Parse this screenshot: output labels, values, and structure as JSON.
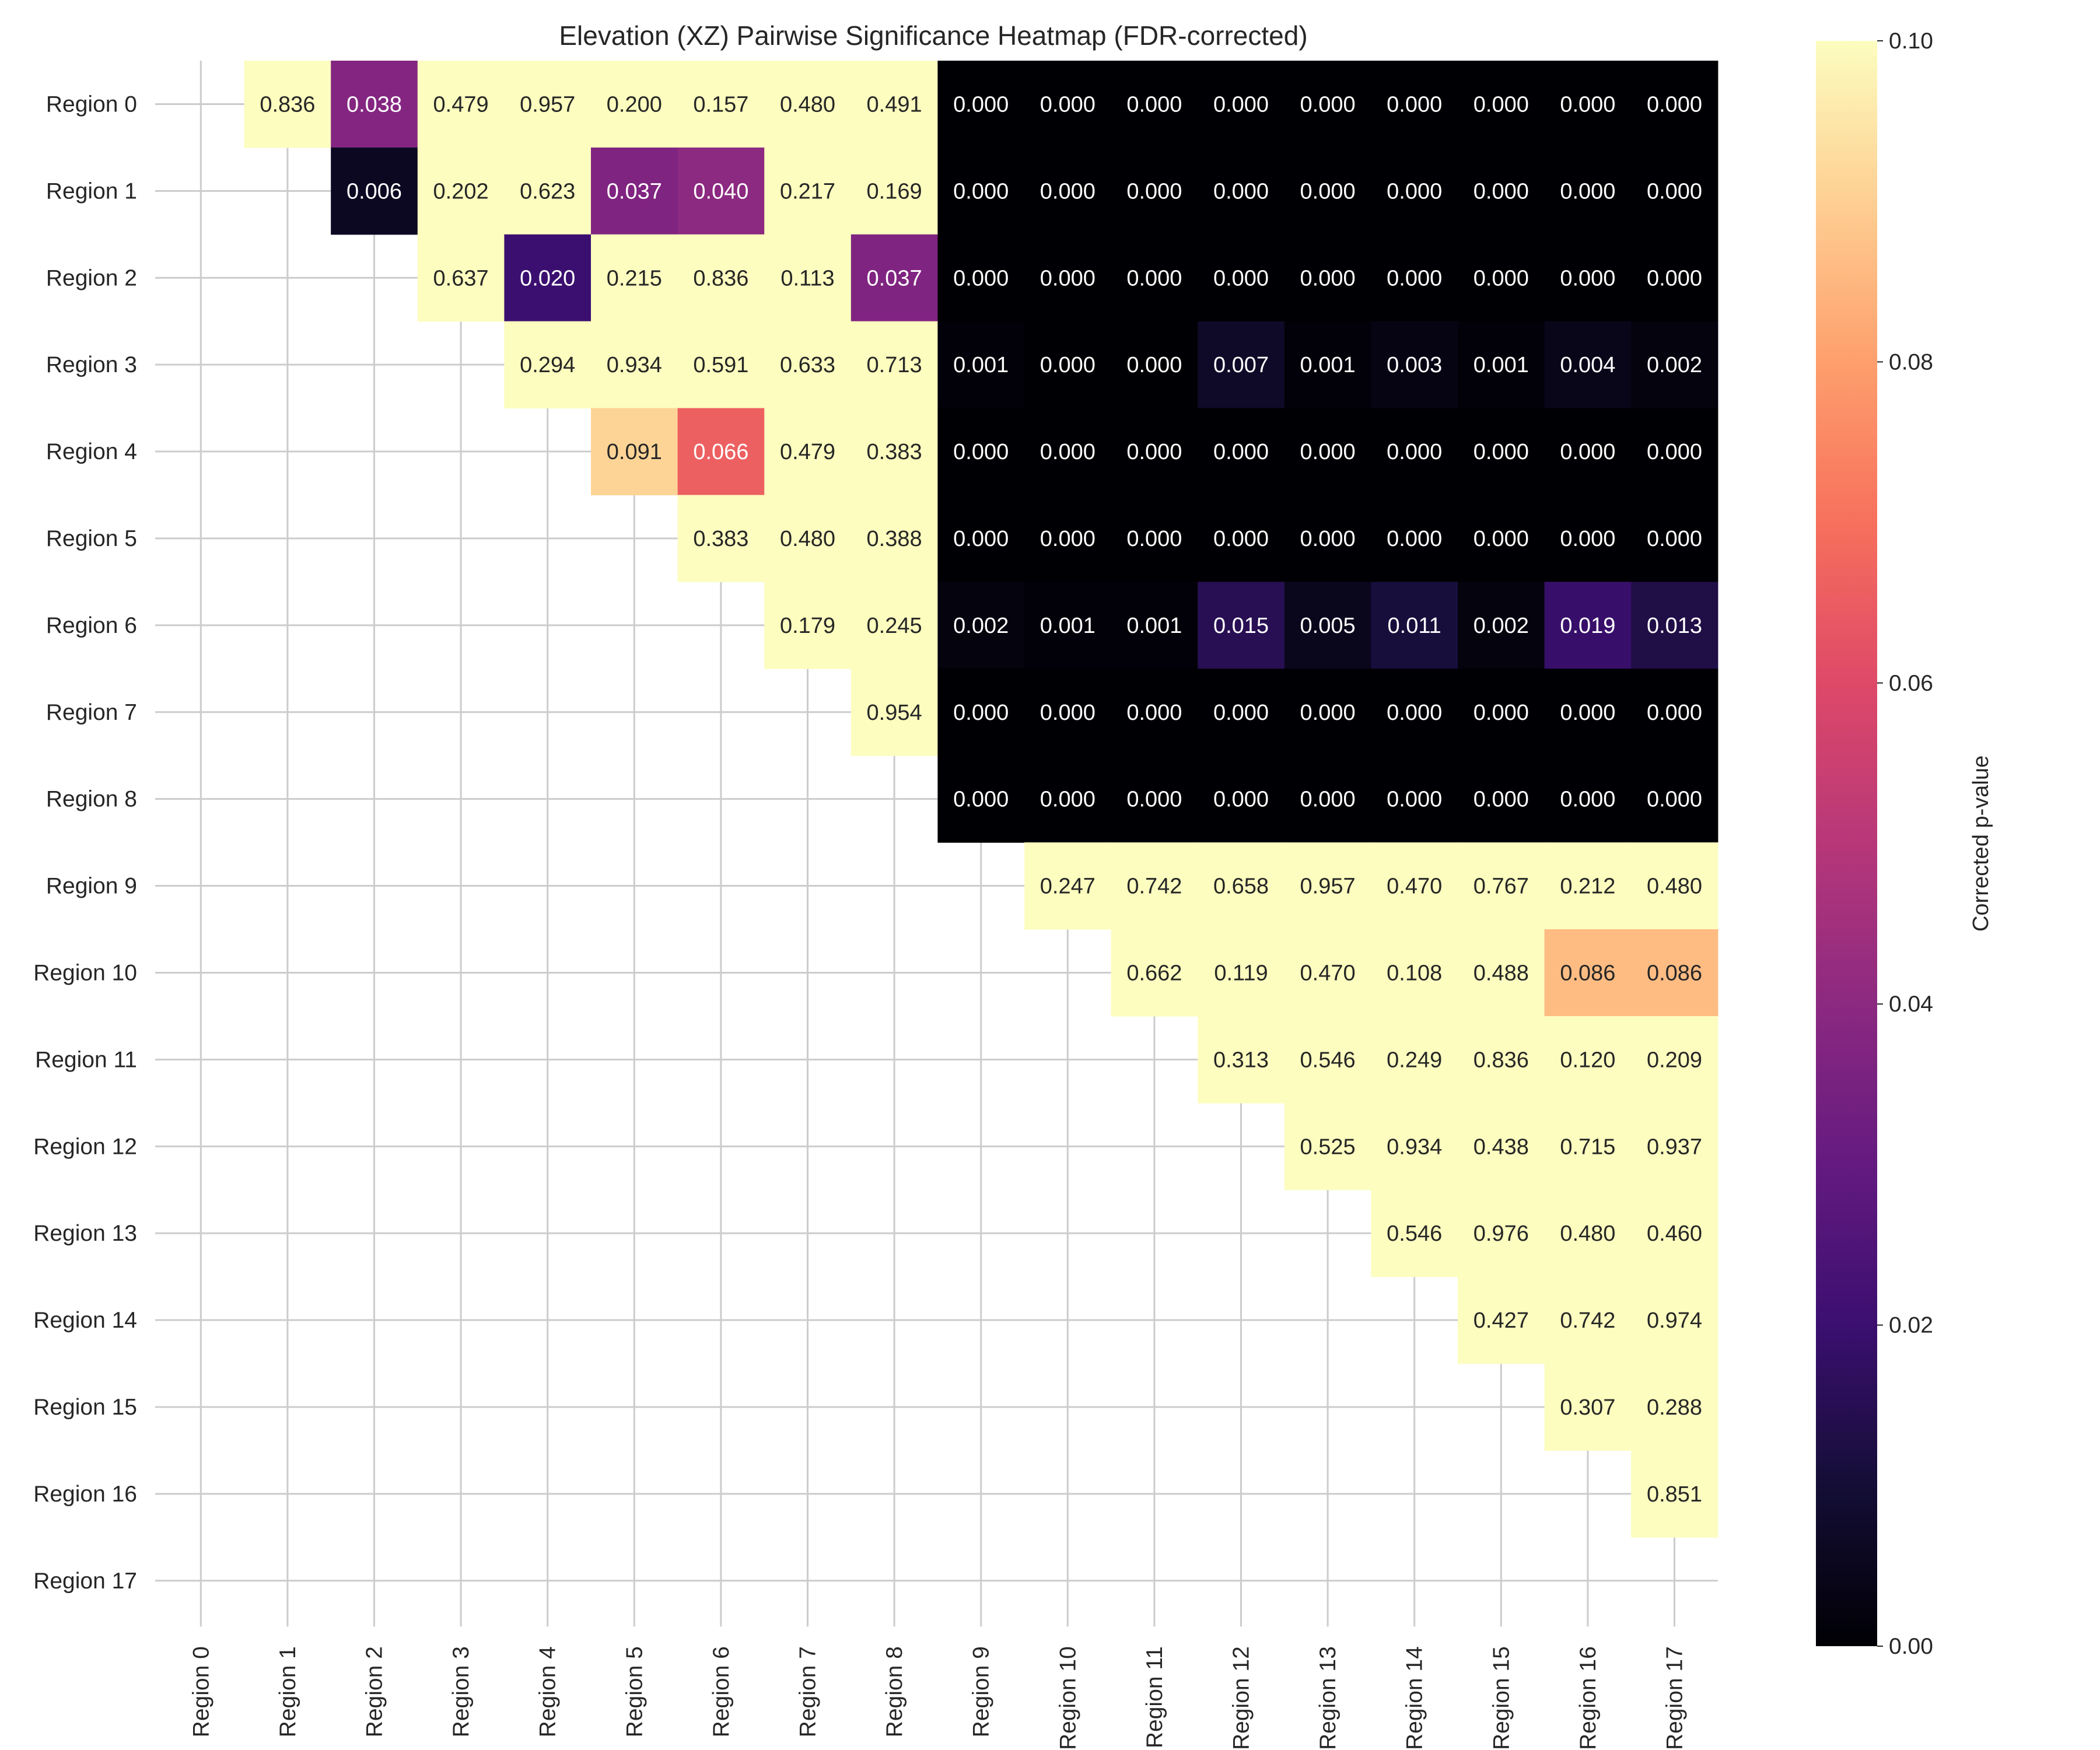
{
  "chart_data": {
    "type": "heatmap",
    "title": "Elevation (XZ) Pairwise Significance Heatmap (FDR-corrected)",
    "rows": [
      "Region 0",
      "Region 1",
      "Region 2",
      "Region 3",
      "Region 4",
      "Region 5",
      "Region 6",
      "Region 7",
      "Region 8",
      "Region 9",
      "Region 10",
      "Region 11",
      "Region 12",
      "Region 13",
      "Region 14",
      "Region 15",
      "Region 16",
      "Region 17"
    ],
    "columns": [
      "Region 0",
      "Region 1",
      "Region 2",
      "Region 3",
      "Region 4",
      "Region 5",
      "Region 6",
      "Region 7",
      "Region 8",
      "Region 9",
      "Region 10",
      "Region 11",
      "Region 12",
      "Region 13",
      "Region 14",
      "Region 15",
      "Region 16",
      "Region 17"
    ],
    "mask": "lower-triangle-and-diagonal",
    "values": [
      [
        null,
        0.836,
        0.038,
        0.479,
        0.957,
        0.2,
        0.157,
        0.48,
        0.491,
        0.0,
        0.0,
        0.0,
        0.0,
        0.0,
        0.0,
        0.0,
        0.0,
        0.0
      ],
      [
        null,
        null,
        0.006,
        0.202,
        0.623,
        0.037,
        0.04,
        0.217,
        0.169,
        0.0,
        0.0,
        0.0,
        0.0,
        0.0,
        0.0,
        0.0,
        0.0,
        0.0
      ],
      [
        null,
        null,
        null,
        0.637,
        0.02,
        0.215,
        0.836,
        0.113,
        0.037,
        0.0,
        0.0,
        0.0,
        0.0,
        0.0,
        0.0,
        0.0,
        0.0,
        0.0
      ],
      [
        null,
        null,
        null,
        null,
        0.294,
        0.934,
        0.591,
        0.633,
        0.713,
        0.001,
        0.0,
        0.0,
        0.007,
        0.001,
        0.003,
        0.001,
        0.004,
        0.002
      ],
      [
        null,
        null,
        null,
        null,
        null,
        0.091,
        0.066,
        0.479,
        0.383,
        0.0,
        0.0,
        0.0,
        0.0,
        0.0,
        0.0,
        0.0,
        0.0,
        0.0
      ],
      [
        null,
        null,
        null,
        null,
        null,
        null,
        0.383,
        0.48,
        0.388,
        0.0,
        0.0,
        0.0,
        0.0,
        0.0,
        0.0,
        0.0,
        0.0,
        0.0
      ],
      [
        null,
        null,
        null,
        null,
        null,
        null,
        null,
        0.179,
        0.245,
        0.002,
        0.001,
        0.001,
        0.015,
        0.005,
        0.011,
        0.002,
        0.019,
        0.013
      ],
      [
        null,
        null,
        null,
        null,
        null,
        null,
        null,
        null,
        0.954,
        0.0,
        0.0,
        0.0,
        0.0,
        0.0,
        0.0,
        0.0,
        0.0,
        0.0
      ],
      [
        null,
        null,
        null,
        null,
        null,
        null,
        null,
        null,
        null,
        0.0,
        0.0,
        0.0,
        0.0,
        0.0,
        0.0,
        0.0,
        0.0,
        0.0
      ],
      [
        null,
        null,
        null,
        null,
        null,
        null,
        null,
        null,
        null,
        null,
        0.247,
        0.742,
        0.658,
        0.957,
        0.47,
        0.767,
        0.212,
        0.48
      ],
      [
        null,
        null,
        null,
        null,
        null,
        null,
        null,
        null,
        null,
        null,
        null,
        0.662,
        0.119,
        0.47,
        0.108,
        0.488,
        0.086,
        0.086
      ],
      [
        null,
        null,
        null,
        null,
        null,
        null,
        null,
        null,
        null,
        null,
        null,
        null,
        0.313,
        0.546,
        0.249,
        0.836,
        0.12,
        0.209
      ],
      [
        null,
        null,
        null,
        null,
        null,
        null,
        null,
        null,
        null,
        null,
        null,
        null,
        null,
        0.525,
        0.934,
        0.438,
        0.715,
        0.937
      ],
      [
        null,
        null,
        null,
        null,
        null,
        null,
        null,
        null,
        null,
        null,
        null,
        null,
        null,
        null,
        0.546,
        0.976,
        0.48,
        0.46
      ],
      [
        null,
        null,
        null,
        null,
        null,
        null,
        null,
        null,
        null,
        null,
        null,
        null,
        null,
        null,
        null,
        0.427,
        0.742,
        0.974
      ],
      [
        null,
        null,
        null,
        null,
        null,
        null,
        null,
        null,
        null,
        null,
        null,
        null,
        null,
        null,
        null,
        null,
        0.307,
        0.288
      ],
      [
        null,
        null,
        null,
        null,
        null,
        null,
        null,
        null,
        null,
        null,
        null,
        null,
        null,
        null,
        null,
        null,
        null,
        0.851
      ],
      [
        null,
        null,
        null,
        null,
        null,
        null,
        null,
        null,
        null,
        null,
        null,
        null,
        null,
        null,
        null,
        null,
        null,
        null
      ]
    ],
    "value_format": "0.000",
    "colormap": "magma",
    "colorbar": {
      "label": "Corrected p-value",
      "range": [
        0.0,
        0.1
      ],
      "ticks": [
        "0.00",
        "0.02",
        "0.04",
        "0.06",
        "0.08",
        "0.10"
      ]
    },
    "grid": true
  }
}
